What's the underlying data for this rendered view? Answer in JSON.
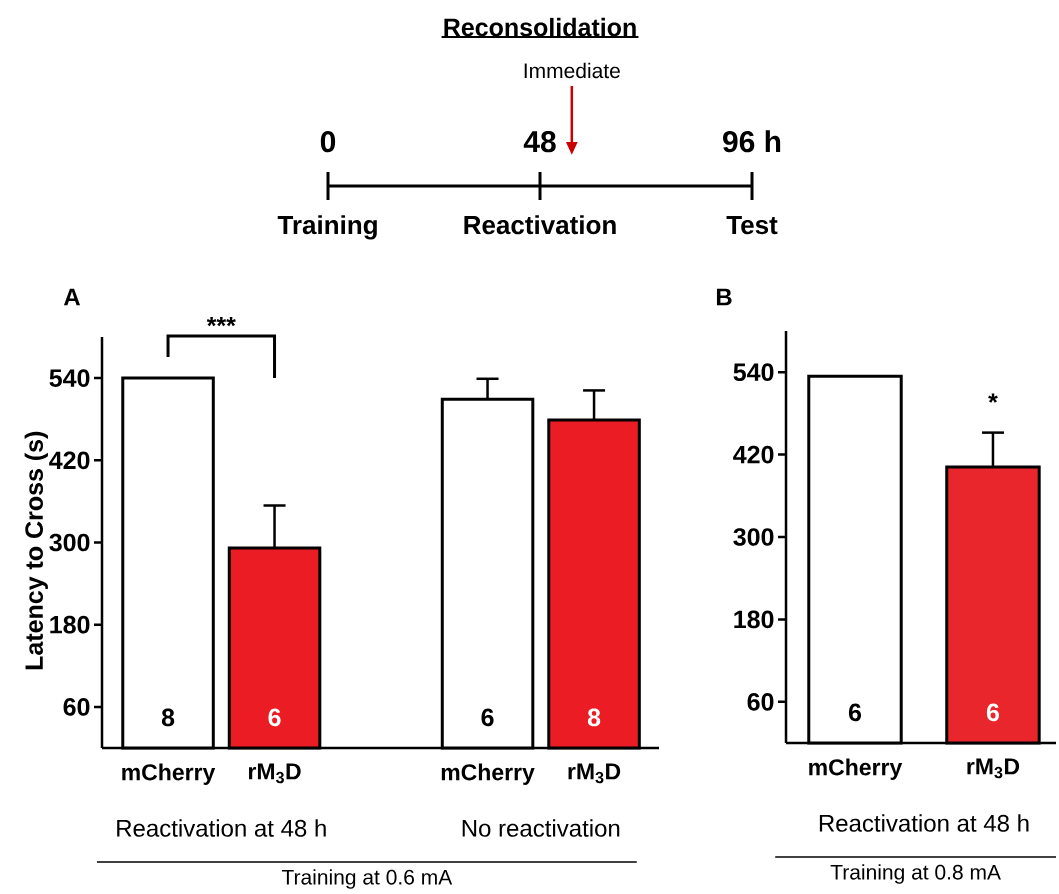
{
  "chart_data": [
    {
      "type": "other",
      "title": "Reconsolidation",
      "annotations": [
        "0",
        "48",
        "96 h",
        "Training",
        "Reactivation",
        "Test",
        "Immediate"
      ]
    },
    {
      "type": "bar",
      "title": "A",
      "ylabel": "Latency to Cross (s)",
      "categories": [
        "mCherry",
        "rM$_{3}$D",
        null,
        "mCherry",
        "rM$_{3}$D"
      ],
      "values": [
        540,
        292,
        null,
        509,
        479
      ],
      "colors": [
        "#ffffff",
        "#ec1c24",
        "#ffffff",
        "#ffffff",
        "#ec1c24"
      ],
      "errors": [
        null,
        62,
        null,
        30,
        43
      ],
      "ylim": [
        0,
        600
      ],
      "yticks": [
        60,
        180,
        300,
        420,
        540
      ],
      "annotations": [
        "***",
        "8",
        "6",
        "6",
        "8",
        "Reactivation at 48 h",
        "No reactivation",
        "Training at 0.6 mA"
      ]
    },
    {
      "type": "bar",
      "title": "B",
      "categories": [
        "mCherry",
        "rM$_{3}$D"
      ],
      "values": [
        534,
        402
      ],
      "colors": [
        "#ffffff",
        "#e8262b"
      ],
      "errors": [
        null,
        50
      ],
      "ylim": [
        0,
        600
      ],
      "yticks": [
        60,
        180,
        300,
        420,
        540
      ],
      "annotations": [
        "*",
        "6",
        "6",
        "Reactivation at 48 h",
        "Training at 0.8 mA"
      ]
    }
  ]
}
